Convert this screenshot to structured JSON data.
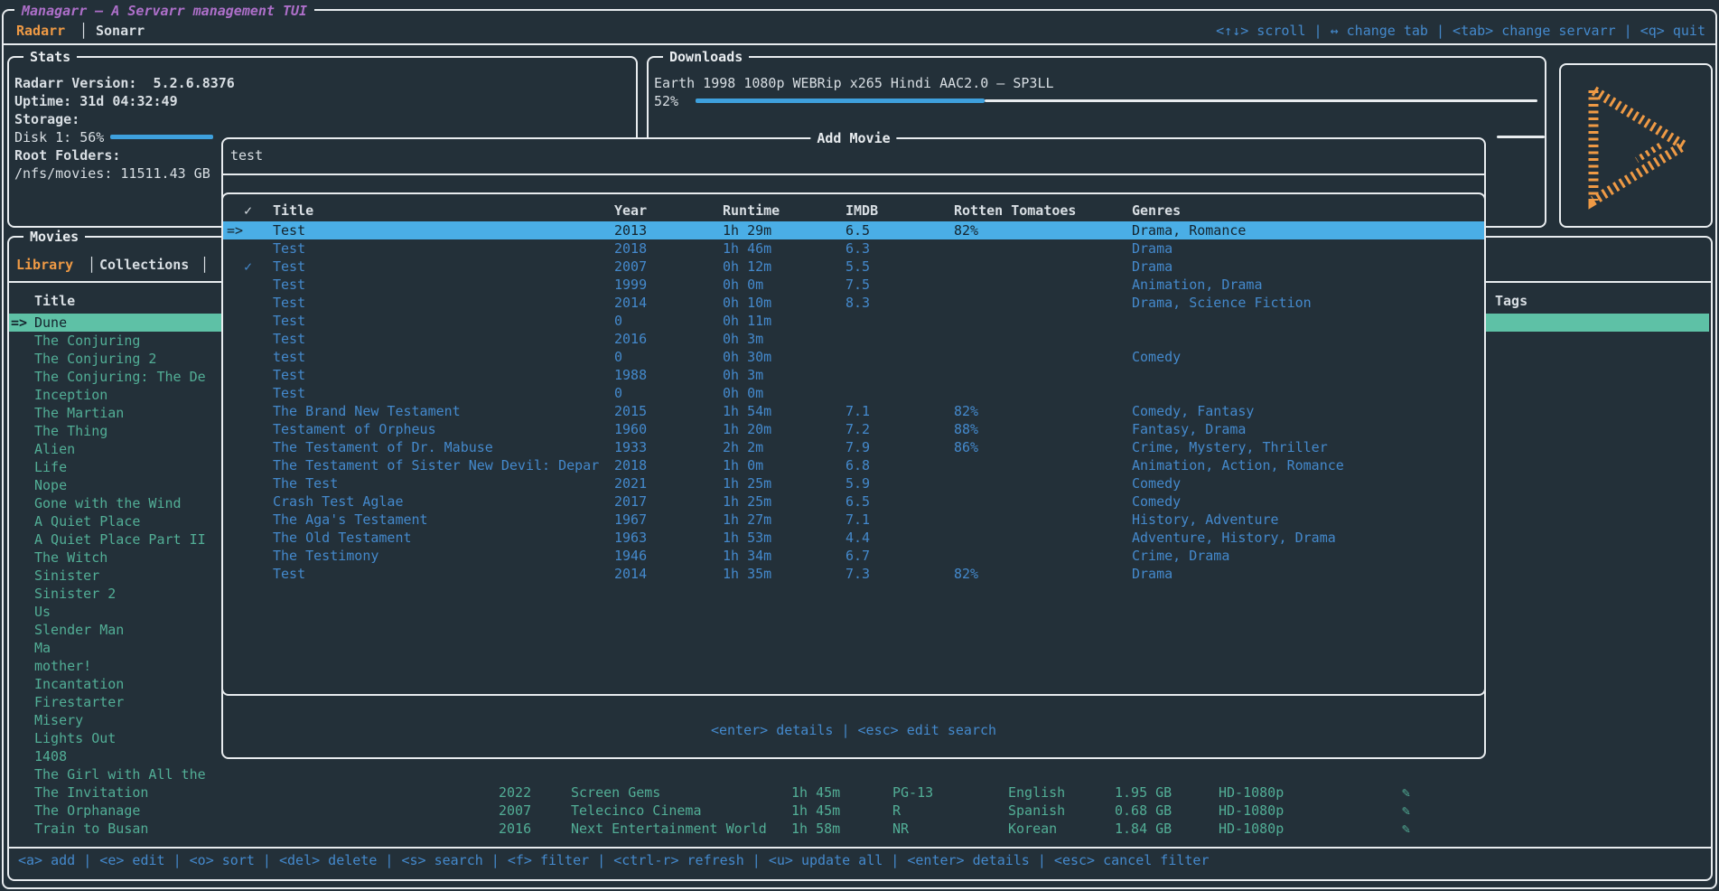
{
  "app": {
    "title": "Managarr – A Servarr management TUI",
    "tabs": [
      {
        "label": "Radarr",
        "active": true
      },
      {
        "label": "Sonarr",
        "active": false
      }
    ],
    "tab_separator": "│",
    "top_hints": "<↑↓> scroll | ↔ change tab | <tab> change servarr | <q> quit",
    "bottom_hints": "<a> add | <e> edit | <o> sort | <del> delete | <s> search | <f> filter | <ctrl-r> refresh | <u> update all | <enter> details | <esc> cancel filter"
  },
  "colors": {
    "background": "#233039",
    "foreground": "#e8ecef",
    "accent_orange": "#ef9a45",
    "accent_purple": "#ad6fc9",
    "hint_blue": "#4489cc",
    "list_teal": "#52ae96",
    "selection_teal": "#5ec1a6",
    "selection_blue": "#4aaee6",
    "gauge_blue": "#3ea0dd"
  },
  "stats": {
    "title": "Stats",
    "version_line": "Radarr Version:  5.2.6.8376",
    "uptime_line": "Uptime: 31d 04:32:49",
    "storage_label": "Storage:",
    "disk_line": "Disk 1: 56%",
    "root_folders_label": "Root Folders:",
    "root_folder_value": "/nfs/movies: 11511.43 GB"
  },
  "downloads": {
    "title": "Downloads",
    "item_name": "Earth 1998 1080p WEBRip x265 Hindi AAC2.0 – SP3LL",
    "percent": "52%"
  },
  "movies": {
    "title": "Movies",
    "tabs": [
      {
        "label": "Library",
        "active": true
      },
      {
        "label": "Collections",
        "active": false
      }
    ],
    "header_title": "Title",
    "header_tags": "Tags",
    "monitored_icon": "✎",
    "items": [
      {
        "title": "Dune",
        "selected": true
      },
      {
        "title": "The Conjuring"
      },
      {
        "title": "The Conjuring 2"
      },
      {
        "title": "The Conjuring: The De"
      },
      {
        "title": "Inception"
      },
      {
        "title": "The Martian"
      },
      {
        "title": "The Thing"
      },
      {
        "title": "Alien"
      },
      {
        "title": "Life"
      },
      {
        "title": "Nope"
      },
      {
        "title": "Gone with the Wind"
      },
      {
        "title": "A Quiet Place"
      },
      {
        "title": "A Quiet Place Part II"
      },
      {
        "title": "The Witch"
      },
      {
        "title": "Sinister"
      },
      {
        "title": "Sinister 2"
      },
      {
        "title": "Us"
      },
      {
        "title": "Slender Man"
      },
      {
        "title": "Ma"
      },
      {
        "title": "mother!"
      },
      {
        "title": "Incantation"
      },
      {
        "title": "Firestarter"
      },
      {
        "title": "Misery"
      },
      {
        "title": "Lights Out"
      },
      {
        "title": "1408"
      },
      {
        "title": "The Girl with All the"
      },
      {
        "title": "The Invitation",
        "year": "2022",
        "studio": "Screen Gems",
        "runtime": "1h 45m",
        "certification": "PG-13",
        "language": "English",
        "size": "1.95 GB",
        "quality": "HD-1080p"
      },
      {
        "title": "The Orphanage",
        "year": "2007",
        "studio": "Telecinco Cinema",
        "runtime": "1h 45m",
        "certification": "R",
        "language": "Spanish",
        "size": "0.68 GB",
        "quality": "HD-1080p"
      },
      {
        "title": "Train to Busan",
        "year": "2016",
        "studio": "Next Entertainment World",
        "runtime": "1h 58m",
        "certification": "NR",
        "language": "Korean",
        "size": "1.84 GB",
        "quality": "HD-1080p"
      }
    ]
  },
  "add_movie_modal": {
    "title": "Add Movie",
    "search_value": "test",
    "footer_hints": "<enter> details | <esc> edit search",
    "columns": {
      "check": "✓",
      "title": "Title",
      "year": "Year",
      "runtime": "Runtime",
      "imdb": "IMDB",
      "rotten_tomatoes": "Rotten Tomatoes",
      "genres": "Genres"
    },
    "rows": [
      {
        "selected": true,
        "title": "Test",
        "year": "2013",
        "runtime": "1h 29m",
        "imdb": "6.5",
        "rt": "82%",
        "genres": "Drama, Romance"
      },
      {
        "title": "Test",
        "year": "2018",
        "runtime": "1h 46m",
        "imdb": "6.3",
        "genres": "Drama"
      },
      {
        "check": "✓",
        "title": "Test",
        "year": "2007",
        "runtime": "0h 12m",
        "imdb": "5.5",
        "genres": "Drama"
      },
      {
        "title": "Test",
        "year": "1999",
        "runtime": "0h 0m",
        "imdb": "7.5",
        "genres": "Animation, Drama"
      },
      {
        "title": "Test",
        "year": "2014",
        "runtime": "0h 10m",
        "imdb": "8.3",
        "genres": "Drama, Science Fiction"
      },
      {
        "title": "Test",
        "year": "0",
        "runtime": "0h 11m"
      },
      {
        "title": "Test",
        "year": "2016",
        "runtime": "0h 3m"
      },
      {
        "title": "test",
        "year": "0",
        "runtime": "0h 30m",
        "genres": "Comedy"
      },
      {
        "title": "Test",
        "year": "1988",
        "runtime": "0h 3m"
      },
      {
        "title": "Test",
        "year": "0",
        "runtime": "0h 0m"
      },
      {
        "title": "The Brand New Testament",
        "year": "2015",
        "runtime": "1h 54m",
        "imdb": "7.1",
        "rt": "82%",
        "genres": "Comedy, Fantasy"
      },
      {
        "title": "Testament of Orpheus",
        "year": "1960",
        "runtime": "1h 20m",
        "imdb": "7.2",
        "rt": "88%",
        "genres": "Fantasy, Drama"
      },
      {
        "title": "The Testament of Dr. Mabuse",
        "year": "1933",
        "runtime": "2h 2m",
        "imdb": "7.9",
        "rt": "86%",
        "genres": "Crime, Mystery, Thriller"
      },
      {
        "title": "The Testament of Sister New Devil: Depar",
        "year": "2018",
        "runtime": "1h 0m",
        "imdb": "6.8",
        "genres": "Animation, Action, Romance"
      },
      {
        "title": "The Test",
        "year": "2021",
        "runtime": "1h 25m",
        "imdb": "5.9",
        "genres": "Comedy"
      },
      {
        "title": "Crash Test Aglae",
        "year": "2017",
        "runtime": "1h 25m",
        "imdb": "6.5",
        "genres": "Comedy"
      },
      {
        "title": "The Aga's Testament",
        "year": "1967",
        "runtime": "1h 27m",
        "imdb": "7.1",
        "genres": "History, Adventure"
      },
      {
        "title": "The Old Testament",
        "year": "1963",
        "runtime": "1h 53m",
        "imdb": "4.4",
        "genres": "Adventure, History, Drama"
      },
      {
        "title": "The Testimony",
        "year": "1946",
        "runtime": "1h 34m",
        "imdb": "6.7",
        "genres": "Crime, Drama"
      },
      {
        "title": "Test",
        "year": "2014",
        "runtime": "1h 35m",
        "imdb": "7.3",
        "rt": "82%",
        "genres": "Drama"
      }
    ]
  }
}
